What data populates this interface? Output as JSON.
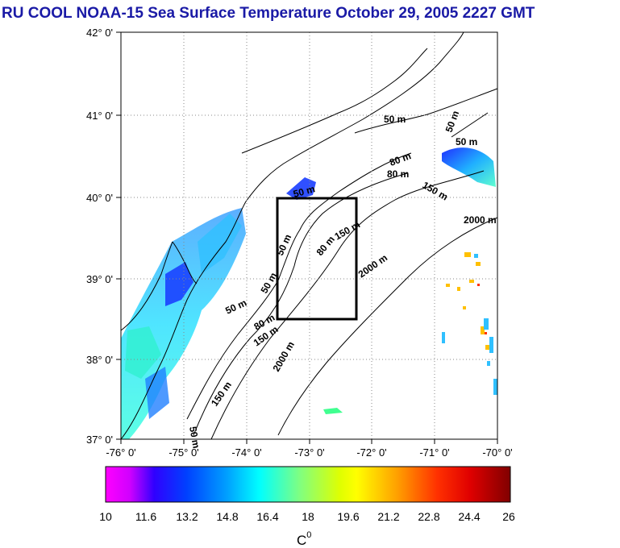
{
  "title": "RU COOL  NOAA-15 Sea Surface Temperature October 29, 2005 2227 GMT",
  "map": {
    "lat_labels": [
      "42° 0'",
      "41° 0'",
      "40° 0'",
      "39° 0'",
      "38° 0'",
      "37° 0'"
    ],
    "lon_labels": [
      "-76° 0'",
      "-75° 0'",
      "-74° 0'",
      "-73° 0'",
      "-72° 0'",
      "-71° 0'",
      "-70° 0'"
    ],
    "isobath_labels": [
      "50 m",
      "50 m",
      "80 m",
      "80 m",
      "150 m",
      "2000 m",
      "50 m",
      "80 m",
      "150 m",
      "2000 m",
      "50 m",
      "50 m",
      "80 m",
      "150 m",
      "2000 m",
      "150 m",
      "50 m",
      "50 m",
      "50 m"
    ],
    "colors": {
      "land_water_bg": "#ffffff",
      "frame": "#000000",
      "study_box": "#000000"
    }
  },
  "colorbar": {
    "ticks": [
      "10",
      "11.6",
      "13.2",
      "14.8",
      "16.4",
      "18",
      "19.6",
      "21.2",
      "22.8",
      "24.4",
      "26"
    ],
    "unit": "C",
    "unit_sup": "0",
    "gradient": [
      "#ff00ff",
      "#0000ff",
      "#00ffff",
      "#80ff80",
      "#ffff00",
      "#ff8000",
      "#ff0000",
      "#800000"
    ]
  }
}
